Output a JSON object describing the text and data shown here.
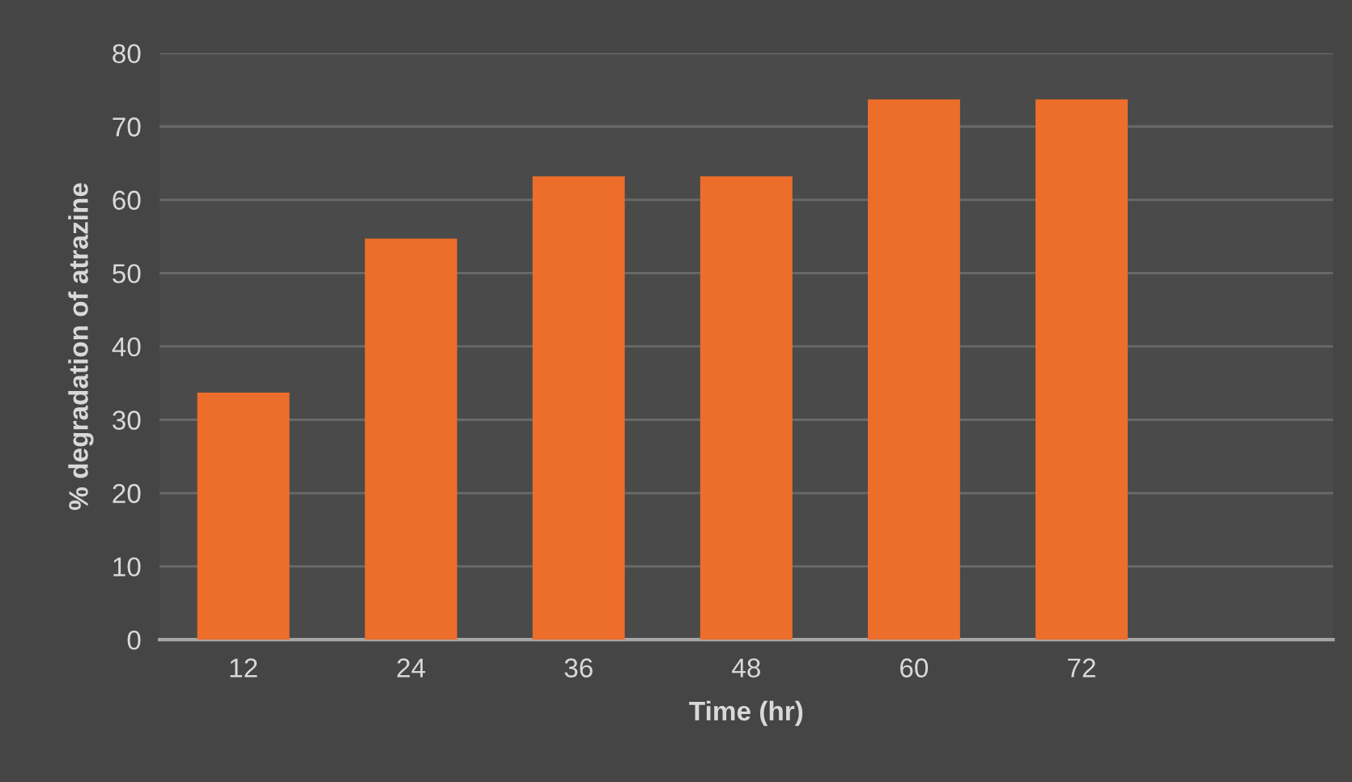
{
  "chart_data": {
    "type": "bar",
    "xlabel": "Time (hr)",
    "ylabel": "% degradation of atrazine",
    "categories": [
      "12",
      "24",
      "36",
      "48",
      "60",
      "72",
      null
    ],
    "values": [
      33.7,
      54.7,
      63.2,
      63.2,
      73.7,
      73.7,
      null
    ],
    "color": "#ed6d2b",
    "ylim": [
      0,
      80
    ],
    "yticks": [
      0,
      10,
      20,
      30,
      40,
      50,
      60,
      70,
      80
    ],
    "grid": "y",
    "legend": false
  }
}
